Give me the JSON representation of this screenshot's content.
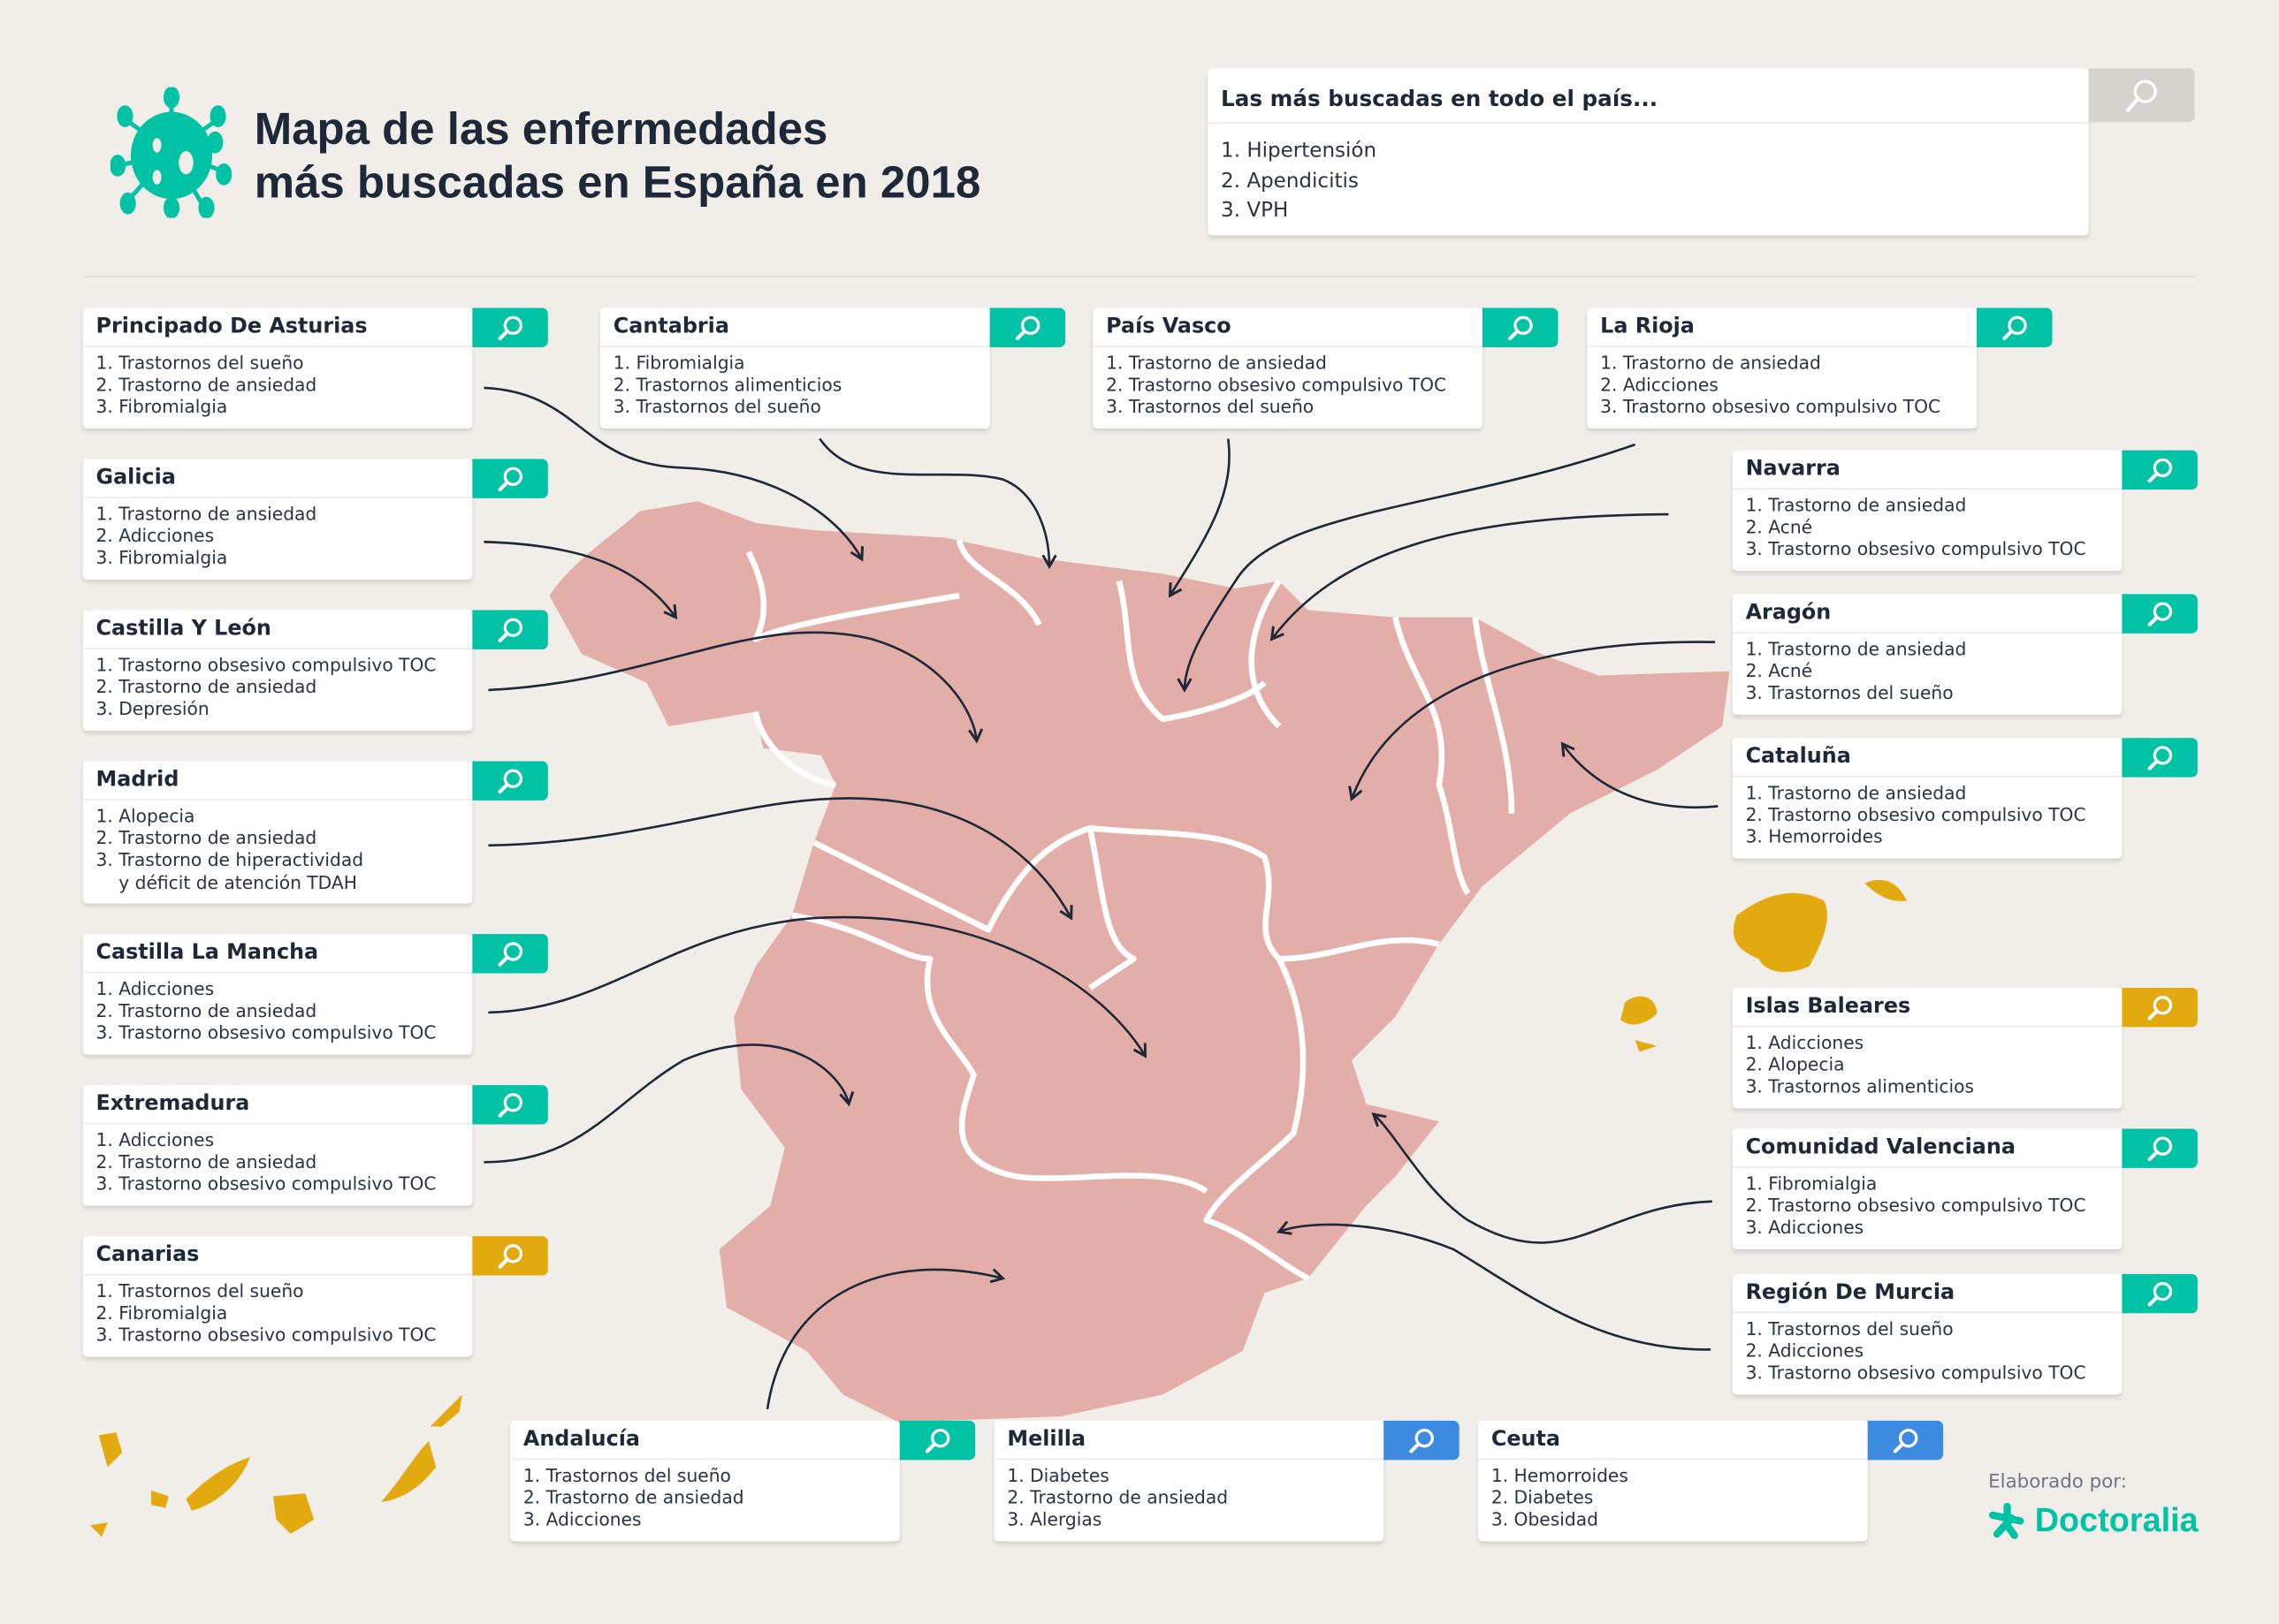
{
  "header": {
    "title_line1": "Mapa de las enfermedades",
    "title_line2": "más buscadas en España en 2018"
  },
  "national": {
    "title": "Las más buscadas en todo el país...",
    "items": [
      "1. Hipertensión",
      "2. Apendicitis",
      "3. VPH"
    ]
  },
  "colors": {
    "teal": "#00c3a5",
    "yellow": "#e3aa0f",
    "blue": "#3d8be0",
    "gray": "#d6d2cd",
    "map": "#e4aea8",
    "text": "#1d2838"
  },
  "regions": [
    {
      "name": "Principado De Asturias",
      "items": [
        "1. Trastornos del sueño",
        "2. Trastorno de ansiedad",
        "3. Fibromialgia"
      ],
      "button_color": "teal"
    },
    {
      "name": "Galicia",
      "items": [
        "1. Trastorno de ansiedad",
        "2. Adicciones",
        "3. Fibromialgia"
      ],
      "button_color": "teal"
    },
    {
      "name": "Castilla Y León",
      "items": [
        "1. Trastorno obsesivo compulsivo TOC",
        "2. Trastorno de ansiedad",
        "3. Depresión"
      ],
      "button_color": "teal"
    },
    {
      "name": "Madrid",
      "items": [
        "1. Alopecia",
        "2. Trastorno de ansiedad",
        "3. Trastorno de hiperactividad",
        "    y déficit de atención TDAH"
      ],
      "button_color": "teal"
    },
    {
      "name": "Castilla La Mancha",
      "items": [
        "1. Adicciones",
        "2. Trastorno de ansiedad",
        "3. Trastorno obsesivo compulsivo TOC"
      ],
      "button_color": "teal"
    },
    {
      "name": "Extremadura",
      "items": [
        "1. Adicciones",
        "2. Trastorno de ansiedad",
        "3. Trastorno obsesivo compulsivo TOC"
      ],
      "button_color": "teal"
    },
    {
      "name": "Canarias",
      "items": [
        "1. Trastornos del sueño",
        "2. Fibromialgia",
        "3. Trastorno obsesivo compulsivo TOC"
      ],
      "button_color": "yellow"
    },
    {
      "name": "Cantabria",
      "items": [
        "1. Fibromialgia",
        "2. Trastornos alimenticios",
        "3. Trastornos del sueño"
      ],
      "button_color": "teal"
    },
    {
      "name": "País Vasco",
      "items": [
        "1. Trastorno de ansiedad",
        "2. Trastorno obsesivo compulsivo TOC",
        "3. Trastornos del sueño"
      ],
      "button_color": "teal"
    },
    {
      "name": "La Rioja",
      "items": [
        "1. Trastorno de ansiedad",
        "2. Adicciones",
        "3. Trastorno obsesivo compulsivo TOC"
      ],
      "button_color": "teal"
    },
    {
      "name": "Navarra",
      "items": [
        "1. Trastorno de ansiedad",
        "2. Acné",
        "3. Trastorno obsesivo compulsivo TOC"
      ],
      "button_color": "teal"
    },
    {
      "name": "Aragón",
      "items": [
        "1. Trastorno de ansiedad",
        "2. Acné",
        "3. Trastornos del sueño"
      ],
      "button_color": "teal"
    },
    {
      "name": "Cataluña",
      "items": [
        "1. Trastorno de ansiedad",
        "2. Trastorno obsesivo compulsivo TOC",
        "3. Hemorroides"
      ],
      "button_color": "teal"
    },
    {
      "name": "Islas Baleares",
      "items": [
        "1. Adicciones",
        "2. Alopecia",
        "3. Trastornos alimenticios"
      ],
      "button_color": "yellow"
    },
    {
      "name": "Comunidad Valenciana",
      "items": [
        "1. Fibromialgia",
        "2. Trastorno obsesivo compulsivo TOC",
        "3. Adicciones"
      ],
      "button_color": "teal"
    },
    {
      "name": "Región De Murcia",
      "items": [
        "1. Trastornos del sueño",
        "2. Adicciones",
        "3. Trastorno obsesivo compulsivo TOC"
      ],
      "button_color": "teal"
    },
    {
      "name": "Andalucía",
      "items": [
        "1. Trastornos del sueño",
        "2. Trastorno de ansiedad",
        "3. Adicciones"
      ],
      "button_color": "teal"
    },
    {
      "name": "Melilla",
      "items": [
        "1. Diabetes",
        "2. Trastorno de ansiedad",
        "3. Alergias"
      ],
      "button_color": "blue"
    },
    {
      "name": "Ceuta",
      "items": [
        "1. Hemorroides",
        "2. Diabetes",
        "3. Obesidad"
      ],
      "button_color": "blue"
    }
  ],
  "footer": {
    "credit": "Elaborado por:",
    "brand": "Doctoralia"
  }
}
